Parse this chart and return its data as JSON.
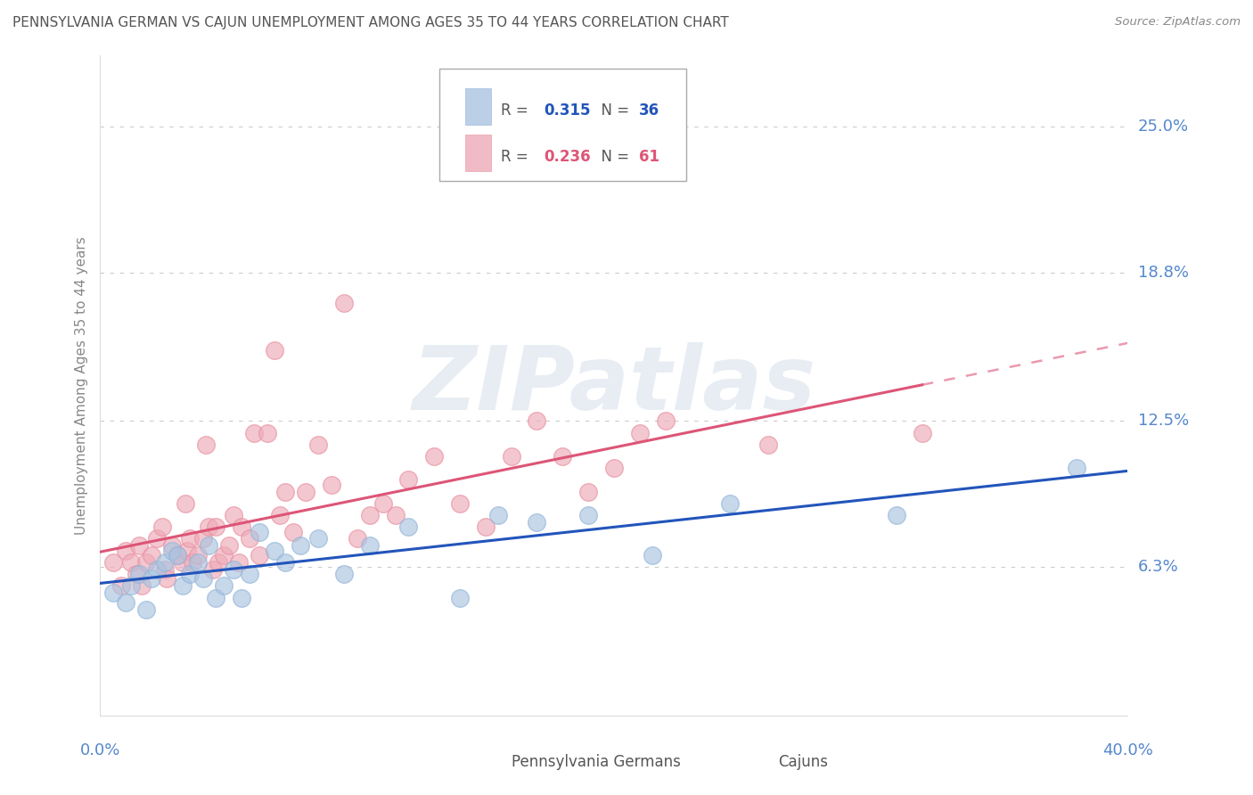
{
  "title": "PENNSYLVANIA GERMAN VS CAJUN UNEMPLOYMENT AMONG AGES 35 TO 44 YEARS CORRELATION CHART",
  "source": "Source: ZipAtlas.com",
  "ylabel": "Unemployment Among Ages 35 to 44 years",
  "ytick_labels": [
    "25.0%",
    "18.8%",
    "12.5%",
    "6.3%"
  ],
  "ytick_values": [
    0.25,
    0.188,
    0.125,
    0.063
  ],
  "xmin": 0.0,
  "xmax": 0.4,
  "ymin": 0.0,
  "ymax": 0.28,
  "blue_color": "#92b4d9",
  "pink_color": "#e8909f",
  "blue_fill": "#aac4e0",
  "pink_fill": "#eeaab8",
  "blue_line_color": "#2255bb",
  "pink_line_color": "#dd5577",
  "legend_R_blue": "0.315",
  "legend_N_blue": "36",
  "legend_R_pink": "0.236",
  "legend_N_pink": "61",
  "bg_color": "#ffffff",
  "grid_color": "#cccccc",
  "title_color": "#555555",
  "axis_label_color": "#5588cc",
  "watermark": "ZIPatlas",
  "pennsylvania_x": [
    0.005,
    0.01,
    0.012,
    0.015,
    0.018,
    0.02,
    0.022,
    0.025,
    0.028,
    0.03,
    0.032,
    0.035,
    0.038,
    0.04,
    0.042,
    0.045,
    0.048,
    0.052,
    0.055,
    0.058,
    0.062,
    0.068,
    0.072,
    0.078,
    0.085,
    0.095,
    0.105,
    0.12,
    0.14,
    0.155,
    0.17,
    0.19,
    0.215,
    0.245,
    0.31,
    0.38
  ],
  "pennsylvania_y": [
    0.052,
    0.048,
    0.055,
    0.06,
    0.045,
    0.058,
    0.062,
    0.065,
    0.07,
    0.068,
    0.055,
    0.06,
    0.065,
    0.058,
    0.072,
    0.05,
    0.055,
    0.062,
    0.05,
    0.06,
    0.078,
    0.07,
    0.065,
    0.072,
    0.075,
    0.06,
    0.072,
    0.08,
    0.05,
    0.085,
    0.082,
    0.085,
    0.068,
    0.09,
    0.085,
    0.105
  ],
  "cajun_x": [
    0.005,
    0.008,
    0.01,
    0.012,
    0.014,
    0.015,
    0.016,
    0.018,
    0.02,
    0.022,
    0.024,
    0.025,
    0.026,
    0.028,
    0.03,
    0.032,
    0.033,
    0.034,
    0.035,
    0.036,
    0.038,
    0.04,
    0.041,
    0.042,
    0.044,
    0.045,
    0.046,
    0.048,
    0.05,
    0.052,
    0.054,
    0.055,
    0.058,
    0.06,
    0.062,
    0.065,
    0.068,
    0.07,
    0.072,
    0.075,
    0.08,
    0.085,
    0.09,
    0.095,
    0.1,
    0.105,
    0.11,
    0.115,
    0.12,
    0.13,
    0.14,
    0.15,
    0.16,
    0.17,
    0.18,
    0.19,
    0.2,
    0.21,
    0.22,
    0.26,
    0.32
  ],
  "cajun_y": [
    0.065,
    0.055,
    0.07,
    0.065,
    0.06,
    0.072,
    0.055,
    0.065,
    0.068,
    0.075,
    0.08,
    0.062,
    0.058,
    0.072,
    0.068,
    0.065,
    0.09,
    0.07,
    0.075,
    0.065,
    0.068,
    0.075,
    0.115,
    0.08,
    0.062,
    0.08,
    0.065,
    0.068,
    0.072,
    0.085,
    0.065,
    0.08,
    0.075,
    0.12,
    0.068,
    0.12,
    0.155,
    0.085,
    0.095,
    0.078,
    0.095,
    0.115,
    0.098,
    0.175,
    0.075,
    0.085,
    0.09,
    0.085,
    0.1,
    0.11,
    0.09,
    0.08,
    0.11,
    0.125,
    0.11,
    0.095,
    0.105,
    0.12,
    0.125,
    0.115,
    0.12
  ]
}
